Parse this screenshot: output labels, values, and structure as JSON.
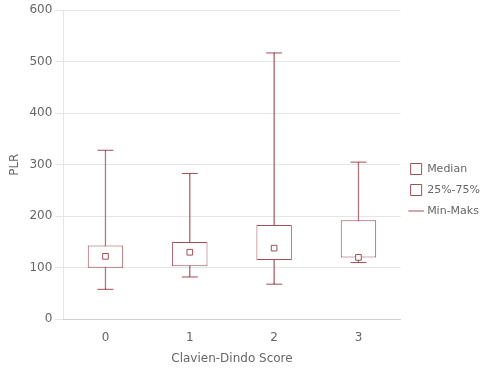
{
  "chart_data": {
    "type": "box",
    "xlabel": "Clavien-Dindo Score",
    "ylabel": "PLR",
    "categories": [
      "0",
      "1",
      "2",
      "3"
    ],
    "medians": [
      122,
      130,
      138,
      120
    ],
    "q1": [
      100,
      103,
      115,
      120
    ],
    "q3": [
      143,
      150,
      183,
      192
    ],
    "whisker_low": [
      58,
      82,
      68,
      110
    ],
    "whisker_high": [
      328,
      283,
      517,
      305
    ],
    "color": "#9e4f55",
    "legend_labels": [
      "Median",
      "25%-75%",
      "Min-Maks"
    ],
    "legend": "right",
    "ylim": [
      0,
      600
    ],
    "yticks": [
      0,
      100,
      200,
      300,
      400,
      500,
      600
    ],
    "grid": "y"
  }
}
